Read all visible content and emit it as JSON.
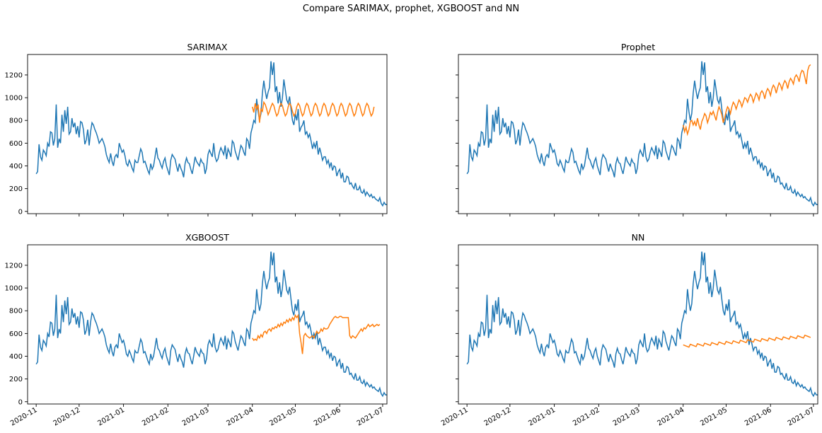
{
  "figure": {
    "title": "Compare SARIMAX, prophet, XGBOOST and NN"
  },
  "colors": {
    "actual": "#1f77b4",
    "forecast": "#ff7f0e",
    "axis": "#000000",
    "background": "#ffffff"
  },
  "chart_data": {
    "type": "line",
    "layout": "2x2 grid, shared x and y axes",
    "ylim": [
      -20,
      1380
    ],
    "yticks": [
      0,
      200,
      400,
      600,
      800,
      1000,
      1200
    ],
    "ytick_labels": [
      "0",
      "200",
      "400",
      "600",
      "800",
      "1000",
      "1200"
    ],
    "xlim": [
      "2020-10-26",
      "2021-07-04"
    ],
    "xticks": [
      "2020-11-01",
      "2020-12-01",
      "2021-01-01",
      "2021-02-01",
      "2021-03-01",
      "2021-04-01",
      "2021-05-01",
      "2021-06-01",
      "2021-07-01"
    ],
    "xtick_labels": [
      "2020-11",
      "2020-12",
      "2021-01",
      "2021-02",
      "2021-03",
      "2021-04",
      "2021-05",
      "2021-06",
      "2021-07"
    ],
    "grid": false,
    "legend": "none",
    "actual": {
      "start": "2020-11-01",
      "frequency": "daily",
      "values": [
        330,
        350,
        590,
        480,
        450,
        540,
        520,
        490,
        600,
        570,
        700,
        690,
        580,
        640,
        940,
        560,
        640,
        600,
        850,
        700,
        890,
        770,
        920,
        680,
        700,
        820,
        740,
        780,
        680,
        750,
        650,
        790,
        780,
        720,
        590,
        630,
        720,
        580,
        700,
        780,
        760,
        720,
        690,
        650,
        600,
        620,
        640,
        610,
        570,
        500,
        460,
        430,
        510,
        440,
        400,
        480,
        500,
        470,
        600,
        560,
        520,
        540,
        490,
        420,
        400,
        450,
        420,
        380,
        350,
        450,
        430,
        430,
        490,
        550,
        520,
        430,
        440,
        400,
        360,
        330,
        420,
        370,
        400,
        480,
        560,
        470,
        450,
        410,
        380,
        440,
        470,
        400,
        360,
        320,
        450,
        500,
        480,
        460,
        400,
        350,
        420,
        380,
        350,
        300,
        420,
        470,
        430,
        420,
        370,
        330,
        400,
        480,
        440,
        420,
        400,
        460,
        430,
        420,
        330,
        380,
        500,
        540,
        510,
        480,
        600,
        480,
        440,
        460,
        520,
        560,
        530,
        500,
        580,
        460,
        550,
        520,
        480,
        620,
        600,
        530,
        490,
        450,
        520,
        580,
        560,
        520,
        490,
        640,
        620,
        550,
        690,
        740,
        800,
        780,
        990,
        880,
        800,
        860,
        1040,
        1150,
        1060,
        990,
        1050,
        1090,
        1320,
        1200,
        1310,
        1050,
        1100,
        950,
        1050,
        920,
        1000,
        1160,
        1070,
        980,
        950,
        1010,
        900,
        800,
        760,
        860,
        800,
        900,
        700,
        740,
        760,
        800,
        680,
        700,
        650,
        680,
        620,
        550,
        600,
        560,
        620,
        500,
        560,
        510,
        450,
        480,
        480,
        420,
        450,
        390,
        430,
        360,
        400,
        390,
        310,
        350,
        370,
        290,
        340,
        260,
        260,
        310,
        300,
        240,
        250,
        220,
        200,
        250,
        190,
        190,
        220,
        170,
        160,
        190,
        140,
        170,
        150,
        130,
        150,
        120,
        130,
        110,
        100,
        90,
        120,
        70,
        50,
        80,
        60,
        60,
        70
      ]
    },
    "series": [
      {
        "title": "SARIMAX",
        "start": "2021-04-01",
        "values": [
          920,
          870,
          950,
          900,
          940,
          780,
          900,
          880,
          960,
          940,
          900,
          850,
          880,
          920,
          950,
          930,
          880,
          840,
          860,
          920,
          950,
          930,
          880,
          840,
          860,
          920,
          950,
          930,
          880,
          840,
          860,
          920,
          950,
          930,
          880,
          840,
          860,
          920,
          950,
          930,
          880,
          840,
          860,
          920,
          950,
          930,
          880,
          840,
          860,
          920,
          950,
          930,
          880,
          840,
          860,
          920,
          950,
          930,
          880,
          840,
          860,
          920,
          950,
          930,
          880,
          840,
          860,
          920,
          950,
          930,
          880,
          840,
          860,
          920,
          950,
          930,
          880,
          840,
          860,
          920,
          950,
          930,
          880,
          840,
          860,
          920
        ]
      },
      {
        "title": "Prophet",
        "start": "2021-04-01",
        "values": [
          760,
          700,
          740,
          680,
          720,
          790,
          800,
          760,
          790,
          750,
          820,
          760,
          720,
          790,
          820,
          860,
          840,
          780,
          820,
          870,
          850,
          880,
          840,
          800,
          870,
          920,
          890,
          850,
          780,
          820,
          880,
          920,
          900,
          860,
          920,
          960,
          940,
          900,
          940,
          980,
          960,
          920,
          960,
          1000,
          990,
          960,
          1000,
          1030,
          1010,
          960,
          1000,
          1040,
          1020,
          980,
          1040,
          1060,
          1040,
          990,
          1050,
          1080,
          1060,
          1020,
          1080,
          1110,
          1090,
          1040,
          1090,
          1130,
          1110,
          1070,
          1120,
          1150,
          1130,
          1080,
          1140,
          1170,
          1150,
          1120,
          1180,
          1200,
          1180,
          1140,
          1210,
          1240,
          1230,
          1180,
          1120,
          1240,
          1280,
          1290
        ]
      },
      {
        "title": "XGBOOST",
        "start": "2021-04-01",
        "values": [
          560,
          540,
          550,
          540,
          580,
          560,
          590,
          570,
          610,
          620,
          600,
          630,
          640,
          620,
          650,
          640,
          660,
          650,
          680,
          660,
          690,
          670,
          700,
          690,
          720,
          700,
          730,
          710,
          740,
          720,
          760,
          740,
          760,
          600,
          520,
          420,
          580,
          600,
          580,
          570,
          560,
          570,
          580,
          560,
          590,
          620,
          600,
          610,
          640,
          620,
          650,
          640,
          640,
          650,
          680,
          700,
          720,
          740,
          750,
          740,
          740,
          750,
          750,
          740,
          740,
          740,
          740,
          740,
          580,
          560,
          580,
          570,
          560,
          580,
          600,
          620,
          640,
          620,
          650,
          640,
          660,
          680,
          660,
          670,
          680,
          660,
          670,
          680,
          670,
          680
        ]
      },
      {
        "title": "NN",
        "start": "2021-04-01",
        "values": [
          500,
          495,
          490,
          485,
          480,
          505,
          500,
          495,
          490,
          485,
          510,
          505,
          500,
          495,
          490,
          515,
          510,
          505,
          500,
          495,
          520,
          515,
          510,
          505,
          500,
          525,
          520,
          515,
          510,
          505,
          530,
          525,
          520,
          515,
          510,
          535,
          530,
          525,
          520,
          515,
          540,
          535,
          530,
          525,
          520,
          545,
          540,
          535,
          530,
          525,
          550,
          545,
          540,
          535,
          530,
          555,
          550,
          545,
          540,
          535,
          560,
          555,
          550,
          545,
          540,
          565,
          560,
          555,
          550,
          545,
          570,
          565,
          560,
          555,
          550,
          575,
          570,
          565,
          560,
          555,
          580,
          575,
          570,
          565,
          560,
          585,
          580,
          575,
          570,
          565
        ]
      }
    ]
  }
}
